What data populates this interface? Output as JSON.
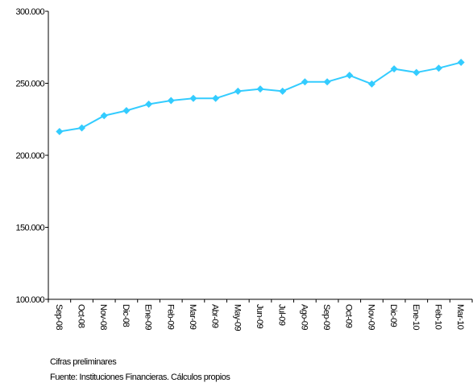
{
  "chart_data": {
    "type": "line",
    "title": "",
    "xlabel": "",
    "ylabel": "",
    "categories": [
      "Sep-08",
      "Oct-08",
      "Nov-08",
      "Dic-08",
      "Ene-09",
      "Feb-09",
      "Mar-09",
      "Abr-09",
      "May-09",
      "Jun-09",
      "Jul-09",
      "Ago-09",
      "Sep-09",
      "Oct-09",
      "Nov-09",
      "Dic-09",
      "Ene-10",
      "Feb-10",
      "Mar-10"
    ],
    "series": [
      {
        "values": [
          216500,
          219000,
          227500,
          231000,
          235500,
          238000,
          239500,
          239500,
          244500,
          246000,
          244500,
          251000,
          251000,
          255500,
          249500,
          260000,
          257500,
          260500,
          264500
        ]
      }
    ],
    "ylim": [
      100000,
      300000
    ],
    "yticks": [
      100000,
      150000,
      200000,
      250000,
      300000
    ],
    "ytick_labels": [
      "100.000",
      "150.000",
      "200.000",
      "250.000",
      "300.000"
    ],
    "grid": false,
    "legend": "none",
    "line_color": "#33CCFF",
    "marker": "diamond"
  },
  "notes": {
    "preliminary": "Cifras preliminares",
    "source": "Fuente: Instituciones Financieras. Cálculos propios"
  }
}
